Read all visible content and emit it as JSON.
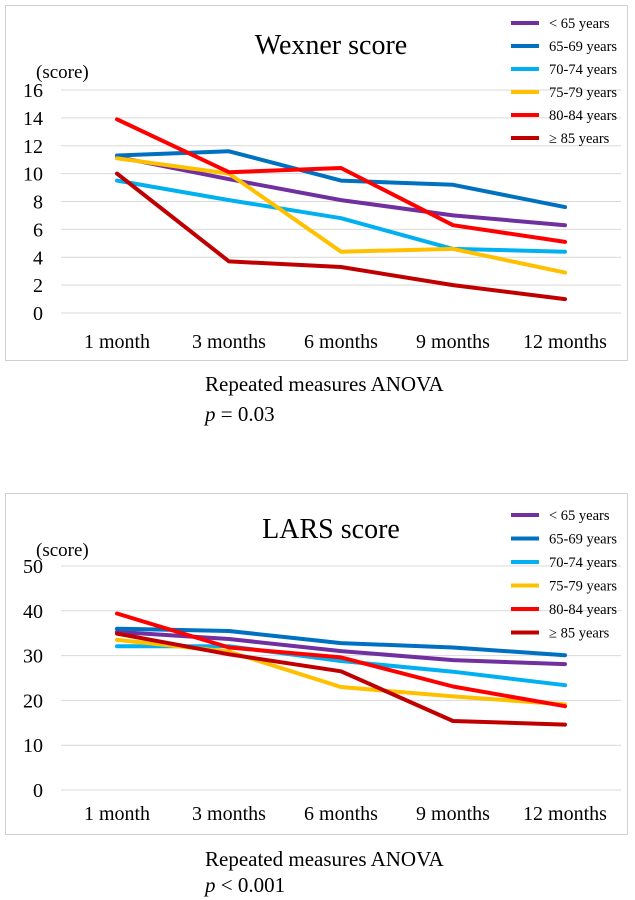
{
  "chart_data": [
    {
      "type": "line",
      "title": "Wexner score",
      "ylabel": "(score)",
      "xlabel": "",
      "categories": [
        "1 month",
        "3 months",
        "6 months",
        "9 months",
        "12 months"
      ],
      "ylim": [
        0,
        16
      ],
      "yticks": [
        0,
        2,
        4,
        6,
        8,
        10,
        12,
        14,
        16
      ],
      "grid": true,
      "legend_position": "top-right",
      "series": [
        {
          "name": "< 65 years",
          "color": "#7030a0",
          "values": [
            11.2,
            9.6,
            8.1,
            7.0,
            6.3
          ]
        },
        {
          "name": "65-69 years",
          "color": "#0070c0",
          "values": [
            11.3,
            11.6,
            9.5,
            9.2,
            7.6
          ]
        },
        {
          "name": "70-74 years",
          "color": "#00b0f0",
          "values": [
            9.5,
            8.1,
            6.8,
            4.6,
            4.4
          ]
        },
        {
          "name": "75-79 years",
          "color": "#ffc000",
          "values": [
            11.1,
            10.0,
            4.4,
            4.6,
            2.9
          ]
        },
        {
          "name": "80-84 years",
          "color": "#ff0000",
          "values": [
            13.9,
            10.1,
            10.4,
            6.3,
            5.1
          ]
        },
        {
          "name": "≥ 85 years",
          "color": "#c00000",
          "values": [
            10.0,
            3.7,
            3.3,
            2.0,
            1.0
          ]
        }
      ]
    },
    {
      "type": "line",
      "title": "LARS score",
      "ylabel": "(score)",
      "xlabel": "",
      "categories": [
        "1 month",
        "3 months",
        "6 months",
        "9 months",
        "12 months"
      ],
      "ylim": [
        0,
        50
      ],
      "yticks": [
        0,
        10,
        20,
        30,
        40,
        50
      ],
      "grid": true,
      "legend_position": "top-right",
      "series": [
        {
          "name": "< 65 years",
          "color": "#7030a0",
          "values": [
            35.3,
            33.7,
            31.0,
            29.0,
            28.1
          ]
        },
        {
          "name": "65-69 years",
          "color": "#0070c0",
          "values": [
            36.0,
            35.5,
            32.8,
            31.8,
            30.1
          ]
        },
        {
          "name": "70-74 years",
          "color": "#00b0f0",
          "values": [
            32.1,
            32.1,
            28.8,
            26.4,
            23.4
          ]
        },
        {
          "name": "75-79 years",
          "color": "#ffc000",
          "values": [
            33.5,
            30.9,
            23.0,
            20.9,
            19.1
          ]
        },
        {
          "name": "80-84 years",
          "color": "#ff0000",
          "values": [
            39.4,
            31.8,
            29.6,
            23.1,
            18.7
          ]
        },
        {
          "name": "≥ 85 years",
          "color": "#c00000",
          "values": [
            34.9,
            30.3,
            26.5,
            15.4,
            14.6
          ]
        }
      ]
    }
  ],
  "captions": [
    {
      "method": "Repeated measures ANOVA",
      "p_symbol": "p",
      "p_rest": " = 0.03"
    },
    {
      "method": "Repeated measures ANOVA",
      "p_symbol": "p",
      "p_rest": " < 0.001"
    }
  ]
}
